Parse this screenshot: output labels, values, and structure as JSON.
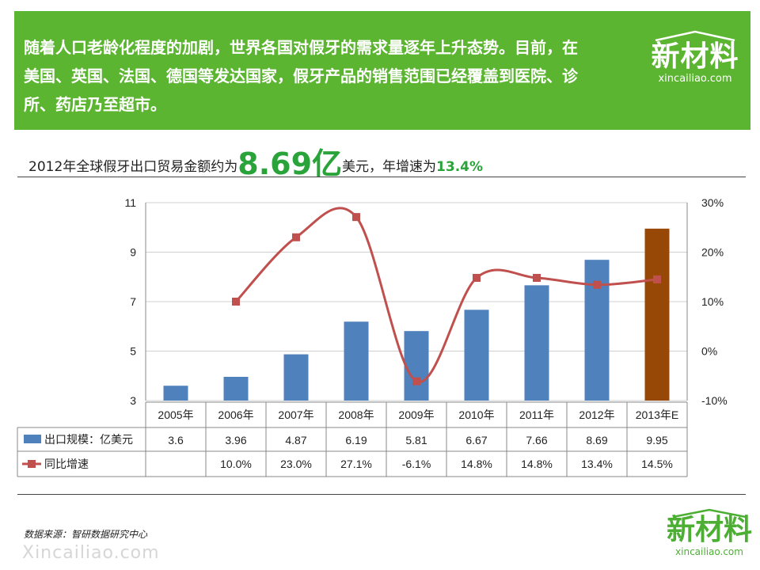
{
  "banner": {
    "lines": [
      "随着人口老龄化程度的加剧，世界各国对假牙的需求量逐年上升态势。目前，在",
      "美国、英国、法国、德国等发达国家，假牙产品的销售范围已经覆盖到医院、诊",
      "所、药店乃至超市。"
    ],
    "logo_text": "新材料",
    "logo_url": "xincailiao.com"
  },
  "headline": {
    "prefix": "2012年全球假牙出口贸易金额约为",
    "amount": "8.69亿",
    "middle": "美元，年增速为",
    "growth": "13.4%"
  },
  "colors": {
    "banner": "#5cb531",
    "bar": "#4f81bd",
    "bar_estimate": "#974806",
    "line": "#c0504d",
    "accent_green": "#2aa43a"
  },
  "chart_data": {
    "type": "bar",
    "categories": [
      "2005年",
      "2006年",
      "2007年",
      "2008年",
      "2009年",
      "2010年",
      "2011年",
      "2012年",
      "2013年E"
    ],
    "series": [
      {
        "name": "出口规模：亿美元",
        "type": "bar",
        "axis": "left",
        "values": [
          3.6,
          3.96,
          4.87,
          6.19,
          5.81,
          6.67,
          7.66,
          8.69,
          9.95
        ],
        "labels": [
          "3.6",
          "3.96",
          "4.87",
          "6.19",
          "5.81",
          "6.67",
          "7.66",
          "8.69",
          "9.95"
        ],
        "highlight_index": 8
      },
      {
        "name": "同比增速",
        "type": "line",
        "axis": "right",
        "values": [
          null,
          10.0,
          23.0,
          27.1,
          -6.1,
          14.8,
          14.8,
          13.4,
          14.5
        ],
        "labels": [
          "",
          "10.0%",
          "23.0%",
          "27.1%",
          "-6.1%",
          "14.8%",
          "14.8%",
          "13.4%",
          "14.5%"
        ]
      }
    ],
    "y_left": {
      "min": 3,
      "max": 11,
      "ticks": [
        "3",
        "5",
        "7",
        "9",
        "11"
      ]
    },
    "y_right": {
      "min": -10,
      "max": 30,
      "ticks": [
        "-10%",
        "0%",
        "10%",
        "20%",
        "30%"
      ]
    },
    "grid": true,
    "legend": "data-table"
  },
  "footer": {
    "source": "数据来源：智研数据研究中心",
    "watermark_url": "Xincailiao.com",
    "logo_text": "新材料",
    "logo_url": "xincailiao.com"
  }
}
